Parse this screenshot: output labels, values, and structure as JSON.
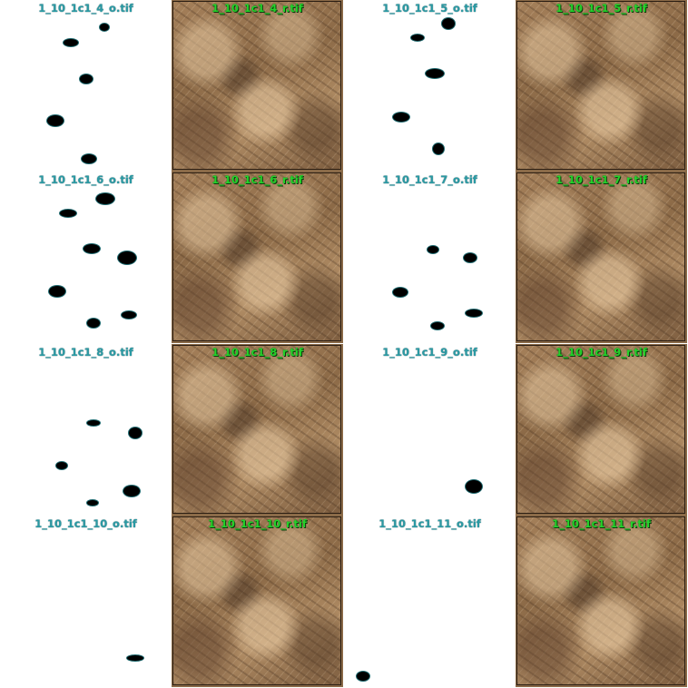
{
  "tiles": [
    {
      "label": "1_10_1c1_4_o.tif",
      "type": "mask"
    },
    {
      "label": "1_10_1c1_4_r.tif",
      "type": "photo"
    },
    {
      "label": "1_10_1c1_5_o.tif",
      "type": "mask"
    },
    {
      "label": "1_10_1c1_5_r.tif",
      "type": "photo"
    },
    {
      "label": "1_10_1c1_6_o.tif",
      "type": "mask"
    },
    {
      "label": "1_10_1c1_6_r.tif",
      "type": "photo"
    },
    {
      "label": "1_10_1c1_7_o.tif",
      "type": "mask"
    },
    {
      "label": "1_10_1c1_7_r.tif",
      "type": "photo"
    },
    {
      "label": "1_10_1c1_8_o.tif",
      "type": "mask"
    },
    {
      "label": "1_10_1c1_8_r.tif",
      "type": "photo"
    },
    {
      "label": "1_10_1c1_9_o.tif",
      "type": "mask"
    },
    {
      "label": "1_10_1c1_9_r.tif",
      "type": "photo"
    },
    {
      "label": "1_10_1c1_10_o.tif",
      "type": "mask"
    },
    {
      "label": "1_10_1c1_10_r.tif",
      "type": "photo"
    },
    {
      "label": "1_10_1c1_11_o.tif",
      "type": "mask"
    },
    {
      "label": "1_10_1c1_11_r.tif",
      "type": "photo"
    }
  ],
  "colors": {
    "mask_label": "#2a9aa4",
    "photo_label": "#23d22a",
    "mask_blob": "#000000"
  }
}
